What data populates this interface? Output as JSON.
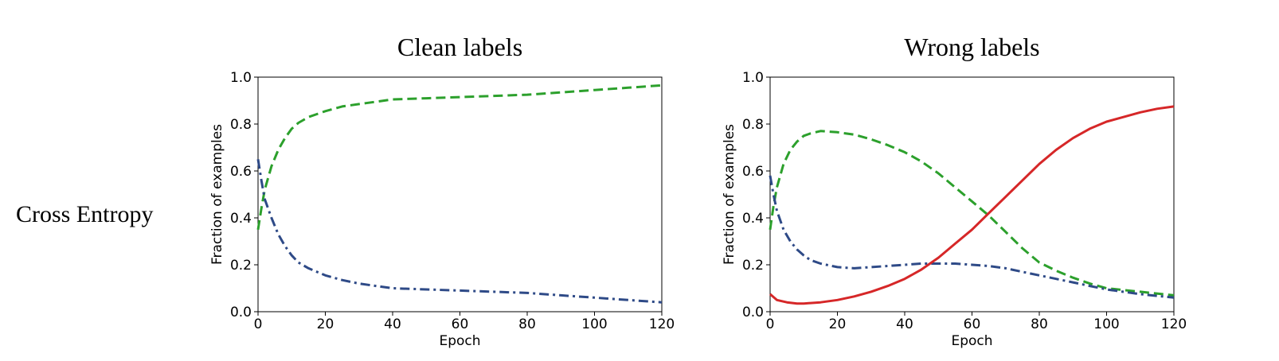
{
  "row_label": "Cross Entropy",
  "colors": {
    "green": "#2ca02c",
    "blue": "#2e4a87",
    "red": "#d62728"
  },
  "chart_data": [
    {
      "type": "line",
      "title": "Clean labels",
      "xlabel": "Epoch",
      "ylabel": "Fraction of examples",
      "xlim": [
        0,
        120
      ],
      "ylim": [
        0,
        1
      ],
      "xticks": [
        0,
        20,
        40,
        60,
        80,
        100,
        120
      ],
      "yticks": [
        0.0,
        0.2,
        0.4,
        0.6,
        0.8,
        1.0
      ],
      "grid": false,
      "series": [
        {
          "color": "#2ca02c",
          "dash": "dashed",
          "x": [
            0,
            1,
            2,
            4,
            6,
            8,
            10,
            12,
            15,
            20,
            25,
            30,
            35,
            40,
            50,
            60,
            70,
            80,
            90,
            100,
            110,
            120
          ],
          "y": [
            0.35,
            0.44,
            0.52,
            0.62,
            0.69,
            0.74,
            0.78,
            0.805,
            0.83,
            0.855,
            0.875,
            0.885,
            0.895,
            0.905,
            0.91,
            0.915,
            0.92,
            0.925,
            0.935,
            0.945,
            0.955,
            0.965
          ]
        },
        {
          "color": "#2e4a87",
          "dash": "dashdot",
          "x": [
            0,
            1,
            2,
            4,
            6,
            8,
            10,
            12,
            15,
            20,
            25,
            30,
            35,
            40,
            50,
            60,
            70,
            80,
            90,
            100,
            110,
            120
          ],
          "y": [
            0.65,
            0.56,
            0.48,
            0.4,
            0.33,
            0.28,
            0.24,
            0.21,
            0.185,
            0.155,
            0.135,
            0.12,
            0.11,
            0.1,
            0.095,
            0.09,
            0.085,
            0.08,
            0.07,
            0.06,
            0.05,
            0.04
          ]
        }
      ]
    },
    {
      "type": "line",
      "title": "Wrong labels",
      "xlabel": "Epoch",
      "ylabel": "Fraction of examples",
      "xlim": [
        0,
        120
      ],
      "ylim": [
        0,
        1
      ],
      "xticks": [
        0,
        20,
        40,
        60,
        80,
        100,
        120
      ],
      "yticks": [
        0.0,
        0.2,
        0.4,
        0.6,
        0.8,
        1.0
      ],
      "grid": false,
      "series": [
        {
          "color": "#2ca02c",
          "dash": "dashed",
          "x": [
            0,
            1,
            2,
            4,
            6,
            8,
            10,
            12,
            15,
            20,
            25,
            30,
            35,
            40,
            45,
            50,
            55,
            60,
            65,
            70,
            75,
            80,
            85,
            90,
            95,
            100,
            110,
            120
          ],
          "y": [
            0.35,
            0.45,
            0.53,
            0.63,
            0.69,
            0.725,
            0.75,
            0.76,
            0.77,
            0.765,
            0.755,
            0.735,
            0.71,
            0.68,
            0.64,
            0.59,
            0.53,
            0.47,
            0.41,
            0.34,
            0.27,
            0.21,
            0.175,
            0.145,
            0.12,
            0.1,
            0.085,
            0.07
          ]
        },
        {
          "color": "#2e4a87",
          "dash": "dashdot",
          "x": [
            0,
            1,
            2,
            4,
            6,
            8,
            10,
            12,
            15,
            20,
            25,
            30,
            35,
            40,
            45,
            50,
            55,
            60,
            65,
            70,
            75,
            80,
            85,
            90,
            95,
            100,
            110,
            120
          ],
          "y": [
            0.58,
            0.5,
            0.43,
            0.35,
            0.3,
            0.265,
            0.24,
            0.22,
            0.205,
            0.19,
            0.185,
            0.19,
            0.195,
            0.2,
            0.205,
            0.205,
            0.205,
            0.2,
            0.195,
            0.185,
            0.17,
            0.155,
            0.14,
            0.125,
            0.11,
            0.095,
            0.075,
            0.06
          ]
        },
        {
          "color": "#d62728",
          "dash": "solid",
          "x": [
            0,
            2,
            5,
            8,
            10,
            15,
            20,
            25,
            30,
            35,
            40,
            45,
            50,
            55,
            60,
            65,
            70,
            75,
            80,
            85,
            90,
            95,
            100,
            105,
            110,
            115,
            120
          ],
          "y": [
            0.075,
            0.05,
            0.04,
            0.035,
            0.035,
            0.04,
            0.05,
            0.065,
            0.085,
            0.11,
            0.14,
            0.18,
            0.23,
            0.29,
            0.35,
            0.42,
            0.49,
            0.56,
            0.63,
            0.69,
            0.74,
            0.78,
            0.81,
            0.83,
            0.85,
            0.865,
            0.875
          ]
        }
      ]
    }
  ]
}
